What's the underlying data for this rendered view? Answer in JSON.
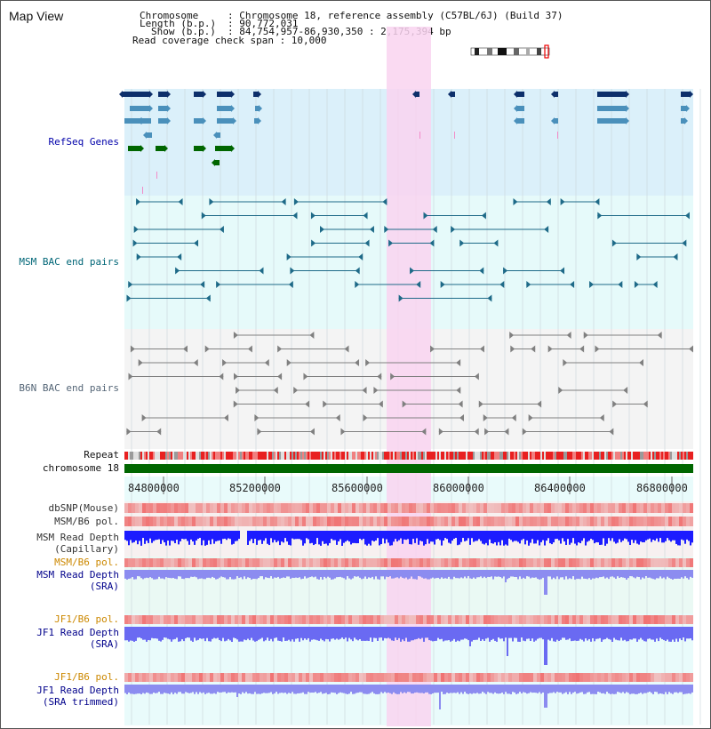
{
  "window": {
    "title": "Map View"
  },
  "header": {
    "chromosome_key": "Chromosome",
    "chromosome_value": ": Chromosome 18, reference assembly (C57BL/6J) (Build 37)",
    "length_key": "Length (b.p.)",
    "length_value": ": 90,772,031",
    "show_key": "Show (b.p.)",
    "show_value": ": 84,754,957-86,930,350 : 2,175,394 bp",
    "coverage_text": "Read coverage check span : 10,000"
  },
  "tracks": {
    "refseq": "RefSeq Genes",
    "msm_bac": "MSM BAC end pairs",
    "b6n_bac": "B6N BAC end pairs",
    "repeat": "Repeat",
    "chromosome": "chromosome 18",
    "dbsnp": "dbSNP(Mouse)",
    "msm_b6_pol_1": "MSM/B6 pol.",
    "msm_depth_cap_1": "MSM Read Depth",
    "msm_depth_cap_2": "(Capillary)",
    "msm_b6_pol_2": "MSM/B6 pol.",
    "msm_depth_sra_1": "MSM Read Depth",
    "msm_depth_sra_2": "(SRA)",
    "jf1_b6_pol_1": "JF1/B6 pol.",
    "jf1_depth_sra_1": "JF1 Read Depth",
    "jf1_depth_sra_2": "(SRA)",
    "jf1_b6_pol_2": "JF1/B6 pol.",
    "jf1_depth_trim_1": "JF1 Read Depth",
    "jf1_depth_trim_2": "(SRA trimmed)"
  },
  "axis": {
    "ticks": [
      "84800000",
      "85200000",
      "85600000",
      "86000000",
      "86400000",
      "86800000"
    ]
  },
  "colors": {
    "refseq_label": "#0000aa",
    "bac_label": "#006677",
    "b6n_label": "#556677",
    "sra_label": "#cc8800",
    "highlight": "#f9d4f0",
    "chromosome_bar": "#006600",
    "depth_blue": "#1c1cff"
  }
}
